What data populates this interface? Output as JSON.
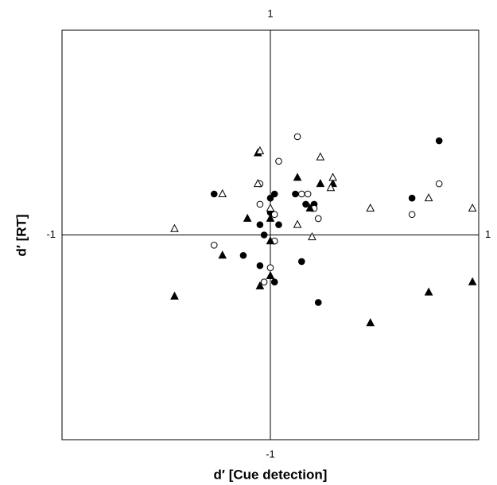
{
  "chart_data": {
    "type": "scatter",
    "x_label": "d′ [Cue detection]",
    "y_label": "d′ [RT]",
    "xlim": [
      -1,
      1
    ],
    "ylim": [
      -1,
      1
    ],
    "xticks": [
      -1,
      1
    ],
    "yticks": [
      -1,
      1
    ],
    "series": [
      {
        "marker": "circle",
        "filled": true,
        "color": "#000000",
        "x": [
          -0.27,
          0.0,
          0.02,
          0.12,
          0.17,
          0.21,
          0.2,
          -0.05,
          0.04,
          -0.03,
          -0.13,
          -0.05,
          0.02,
          0.15,
          0.23,
          0.68,
          0.81,
          0.0
        ],
        "values": [
          0.2,
          0.18,
          0.2,
          0.2,
          0.15,
          0.15,
          0.13,
          0.05,
          0.05,
          0.0,
          -0.1,
          -0.15,
          -0.23,
          -0.13,
          -0.33,
          0.18,
          0.46,
          0.11
        ]
      },
      {
        "marker": "circle",
        "filled": false,
        "color": "#000000",
        "x": [
          0.13,
          0.04,
          -0.05,
          -0.05,
          0.02,
          0.15,
          0.18,
          0.21,
          0.23,
          0.68,
          0.81,
          -0.27,
          0.02,
          0.0,
          -0.03
        ],
        "values": [
          0.48,
          0.36,
          0.25,
          0.15,
          0.1,
          0.2,
          0.2,
          0.13,
          0.08,
          0.1,
          0.25,
          -0.05,
          -0.03,
          -0.16,
          -0.23
        ]
      },
      {
        "marker": "triangle",
        "filled": true,
        "color": "#000000",
        "x": [
          -0.06,
          0.13,
          0.24,
          0.3,
          0.19,
          -0.11,
          0.0,
          0.0,
          -0.23,
          0.0,
          -0.05,
          -0.46,
          0.48,
          0.76,
          0.97
        ],
        "values": [
          0.4,
          0.28,
          0.25,
          0.25,
          0.13,
          0.08,
          0.08,
          -0.03,
          -0.1,
          -0.2,
          -0.25,
          -0.3,
          -0.43,
          -0.28,
          -0.23
        ]
      },
      {
        "marker": "triangle",
        "filled": false,
        "color": "#000000",
        "x": [
          -0.05,
          0.24,
          0.3,
          0.29,
          -0.23,
          -0.06,
          0.0,
          0.13,
          0.2,
          0.48,
          0.76,
          0.97,
          -0.46
        ],
        "values": [
          0.41,
          0.38,
          0.28,
          0.23,
          0.2,
          0.25,
          0.13,
          0.05,
          -0.01,
          0.13,
          0.18,
          0.13,
          0.03
        ]
      }
    ]
  }
}
